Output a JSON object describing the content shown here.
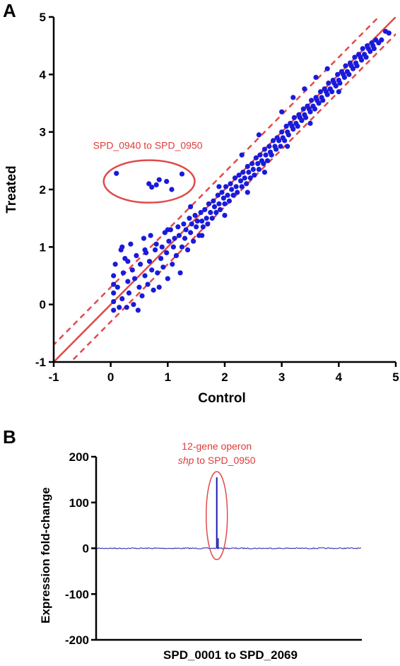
{
  "panel_letters": {
    "a": "A",
    "b": "B"
  },
  "colors": {
    "point": "#1a1adb",
    "trend": "#e04a4a",
    "trace": "#1a1aa8",
    "axis": "#000000"
  },
  "chart_data": [
    {
      "type": "scatter",
      "panel": "A",
      "xlabel": "Control",
      "ylabel": "Treated",
      "xlim": [
        -1,
        5
      ],
      "ylim": [
        -1,
        5
      ],
      "xticks": [
        "-1",
        "0",
        "1",
        "2",
        "3",
        "4",
        "5"
      ],
      "yticks": [
        "-1",
        "0",
        "1",
        "2",
        "3",
        "4",
        "5"
      ],
      "grid": false,
      "reference_lines": {
        "identity": {
          "slope": 1,
          "intercept": 0,
          "style": "solid"
        },
        "upper_bound": {
          "slope": 1,
          "intercept": 0.3,
          "style": "dashed"
        },
        "lower_bound": {
          "slope": 1,
          "intercept": -0.3,
          "style": "dashed"
        }
      },
      "annotation": {
        "text": "SPD_0940 to SPD_0950",
        "outlier_points": [
          {
            "x": 0.1,
            "y": 2.28
          },
          {
            "x": 0.67,
            "y": 2.1
          },
          {
            "x": 0.72,
            "y": 2.04
          },
          {
            "x": 0.8,
            "y": 2.08
          },
          {
            "x": 0.85,
            "y": 2.17
          },
          {
            "x": 0.98,
            "y": 2.14
          },
          {
            "x": 1.07,
            "y": 2.0
          },
          {
            "x": 1.25,
            "y": 2.27
          }
        ]
      },
      "series": [
        {
          "points": [
            [
              0.05,
              -0.1
            ],
            [
              0.05,
              0.05
            ],
            [
              0.05,
              0.2
            ],
            [
              0.05,
              0.35
            ],
            [
              0.05,
              0.5
            ],
            [
              0.08,
              0.7
            ],
            [
              0.12,
              0.3
            ],
            [
              0.15,
              -0.05
            ],
            [
              0.18,
              0.95
            ],
            [
              0.2,
              0.1
            ],
            [
              0.22,
              0.55
            ],
            [
              0.25,
              0.8
            ],
            [
              0.28,
              -0.05
            ],
            [
              0.3,
              0.4
            ],
            [
              0.32,
              0.2
            ],
            [
              0.35,
              1.05
            ],
            [
              0.38,
              0.6
            ],
            [
              0.4,
              0.0
            ],
            [
              0.42,
              0.45
            ],
            [
              0.45,
              0.85
            ],
            [
              0.48,
              -0.1
            ],
            [
              0.5,
              0.3
            ],
            [
              0.52,
              0.7
            ],
            [
              0.55,
              0.15
            ],
            [
              0.58,
              1.15
            ],
            [
              0.6,
              0.5
            ],
            [
              0.62,
              0.9
            ],
            [
              0.65,
              0.35
            ],
            [
              0.68,
              0.75
            ],
            [
              0.7,
              1.2
            ],
            [
              0.72,
              0.6
            ],
            [
              0.75,
              0.25
            ],
            [
              0.78,
              0.95
            ],
            [
              0.8,
              1.05
            ],
            [
              0.82,
              0.55
            ],
            [
              0.85,
              0.3
            ],
            [
              0.88,
              0.8
            ],
            [
              0.9,
              1.0
            ],
            [
              0.92,
              0.65
            ],
            [
              0.95,
              1.25
            ],
            [
              0.98,
              0.9
            ],
            [
              1.0,
              0.45
            ],
            [
              1.02,
              1.1
            ],
            [
              1.05,
              1.3
            ],
            [
              1.08,
              0.7
            ],
            [
              1.1,
              1.0
            ],
            [
              1.12,
              1.15
            ],
            [
              1.15,
              0.85
            ],
            [
              1.18,
              1.35
            ],
            [
              1.2,
              1.2
            ],
            [
              1.22,
              0.55
            ],
            [
              1.25,
              1.0
            ],
            [
              1.28,
              1.4
            ],
            [
              1.3,
              1.15
            ],
            [
              1.32,
              1.3
            ],
            [
              1.35,
              0.95
            ],
            [
              1.38,
              1.5
            ],
            [
              1.4,
              1.25
            ],
            [
              1.42,
              1.4
            ],
            [
              1.45,
              1.1
            ],
            [
              1.48,
              1.55
            ],
            [
              1.5,
              1.35
            ],
            [
              1.52,
              1.45
            ],
            [
              1.55,
              1.2
            ],
            [
              1.58,
              1.6
            ],
            [
              1.6,
              1.45
            ],
            [
              1.62,
              1.35
            ],
            [
              1.65,
              1.65
            ],
            [
              1.68,
              1.5
            ],
            [
              1.7,
              1.4
            ],
            [
              1.72,
              1.75
            ],
            [
              1.75,
              1.6
            ],
            [
              1.78,
              1.5
            ],
            [
              1.8,
              1.8
            ],
            [
              1.82,
              1.7
            ],
            [
              1.85,
              1.6
            ],
            [
              1.88,
              1.9
            ],
            [
              1.9,
              1.75
            ],
            [
              1.92,
              1.65
            ],
            [
              1.95,
              1.95
            ],
            [
              1.98,
              1.85
            ],
            [
              2.0,
              1.75
            ],
            [
              2.02,
              2.05
            ],
            [
              2.05,
              1.9
            ],
            [
              2.08,
              1.8
            ],
            [
              2.1,
              2.1
            ],
            [
              2.12,
              2.0
            ],
            [
              2.15,
              1.9
            ],
            [
              2.18,
              2.2
            ],
            [
              2.2,
              2.05
            ],
            [
              2.22,
              1.95
            ],
            [
              2.25,
              2.25
            ],
            [
              2.28,
              2.15
            ],
            [
              2.3,
              2.05
            ],
            [
              2.32,
              2.3
            ],
            [
              2.35,
              2.2
            ],
            [
              2.38,
              2.1
            ],
            [
              2.4,
              2.4
            ],
            [
              2.42,
              2.3
            ],
            [
              2.45,
              2.2
            ],
            [
              2.48,
              2.45
            ],
            [
              2.5,
              2.35
            ],
            [
              2.52,
              2.25
            ],
            [
              2.55,
              2.55
            ],
            [
              2.58,
              2.45
            ],
            [
              2.6,
              2.35
            ],
            [
              2.62,
              2.6
            ],
            [
              2.65,
              2.5
            ],
            [
              2.68,
              2.45
            ],
            [
              2.7,
              2.7
            ],
            [
              2.72,
              2.6
            ],
            [
              2.75,
              2.5
            ],
            [
              2.78,
              2.75
            ],
            [
              2.8,
              2.65
            ],
            [
              2.82,
              2.6
            ],
            [
              2.85,
              2.85
            ],
            [
              2.88,
              2.75
            ],
            [
              2.9,
              2.7
            ],
            [
              2.92,
              2.9
            ],
            [
              2.95,
              2.85
            ],
            [
              2.98,
              2.75
            ],
            [
              3.0,
              3.0
            ],
            [
              3.02,
              2.9
            ],
            [
              3.05,
              2.85
            ],
            [
              3.08,
              3.1
            ],
            [
              3.1,
              3.0
            ],
            [
              3.12,
              2.95
            ],
            [
              3.15,
              3.15
            ],
            [
              3.18,
              3.1
            ],
            [
              3.2,
              3.05
            ],
            [
              3.22,
              3.25
            ],
            [
              3.25,
              3.15
            ],
            [
              3.28,
              3.1
            ],
            [
              3.3,
              3.3
            ],
            [
              3.32,
              3.25
            ],
            [
              3.35,
              3.2
            ],
            [
              3.38,
              3.4
            ],
            [
              3.4,
              3.3
            ],
            [
              3.42,
              3.25
            ],
            [
              3.45,
              3.45
            ],
            [
              3.48,
              3.4
            ],
            [
              3.5,
              3.35
            ],
            [
              3.52,
              3.55
            ],
            [
              3.55,
              3.45
            ],
            [
              3.58,
              3.4
            ],
            [
              3.6,
              3.6
            ],
            [
              3.62,
              3.55
            ],
            [
              3.65,
              3.5
            ],
            [
              3.68,
              3.7
            ],
            [
              3.7,
              3.6
            ],
            [
              3.72,
              3.55
            ],
            [
              3.75,
              3.75
            ],
            [
              3.78,
              3.7
            ],
            [
              3.8,
              3.65
            ],
            [
              3.82,
              3.85
            ],
            [
              3.85,
              3.75
            ],
            [
              3.88,
              3.7
            ],
            [
              3.9,
              3.9
            ],
            [
              3.92,
              3.85
            ],
            [
              3.95,
              3.8
            ],
            [
              3.98,
              4.0
            ],
            [
              4.0,
              3.9
            ],
            [
              4.02,
              3.85
            ],
            [
              4.05,
              4.05
            ],
            [
              4.08,
              4.0
            ],
            [
              4.1,
              3.95
            ],
            [
              4.12,
              4.15
            ],
            [
              4.15,
              4.05
            ],
            [
              4.18,
              4.0
            ],
            [
              4.2,
              4.2
            ],
            [
              4.22,
              4.15
            ],
            [
              4.25,
              4.1
            ],
            [
              4.28,
              4.3
            ],
            [
              4.3,
              4.2
            ],
            [
              4.32,
              4.15
            ],
            [
              4.35,
              4.35
            ],
            [
              4.38,
              4.3
            ],
            [
              4.4,
              4.25
            ],
            [
              4.42,
              4.45
            ],
            [
              4.45,
              4.35
            ],
            [
              4.48,
              4.3
            ],
            [
              4.5,
              4.5
            ],
            [
              4.52,
              4.45
            ],
            [
              4.55,
              4.4
            ],
            [
              4.58,
              4.55
            ],
            [
              4.6,
              4.5
            ],
            [
              4.62,
              4.45
            ],
            [
              4.65,
              4.6
            ],
            [
              4.7,
              4.55
            ],
            [
              4.75,
              4.6
            ],
            [
              4.82,
              4.75
            ],
            [
              4.88,
              4.72
            ],
            [
              1.9,
              2.05
            ],
            [
              2.3,
              2.6
            ],
            [
              2.6,
              2.95
            ],
            [
              3.0,
              3.35
            ],
            [
              3.4,
              3.75
            ],
            [
              1.4,
              1.7
            ],
            [
              3.2,
              3.6
            ],
            [
              3.8,
              4.1
            ],
            [
              1.0,
              1.3
            ],
            [
              2.0,
              1.55
            ],
            [
              2.7,
              2.3
            ],
            [
              3.1,
              2.75
            ],
            [
              3.5,
              3.15
            ],
            [
              4.0,
              3.7
            ],
            [
              1.6,
              1.2
            ],
            [
              2.4,
              1.95
            ],
            [
              3.6,
              3.95
            ],
            [
              0.6,
              0.95
            ],
            [
              0.3,
              0.75
            ],
            [
              0.2,
              1.0
            ]
          ]
        }
      ]
    },
    {
      "type": "line",
      "panel": "B",
      "xlabel": "SPD_0001 to SPD_2069",
      "ylabel": "Expression fold-change",
      "xlim": [
        1,
        2069
      ],
      "ylim": [
        -200,
        200
      ],
      "yticks": [
        "200",
        "100",
        "0",
        "-100",
        "-200"
      ],
      "grid": false,
      "baseline_value": 0,
      "spike": {
        "x": 940,
        "peak": 155,
        "secondary": 22
      },
      "annotation": {
        "line1": "12-gene operon",
        "line2_italic": "shp",
        "line2_rest": " to SPD_0950"
      }
    }
  ]
}
